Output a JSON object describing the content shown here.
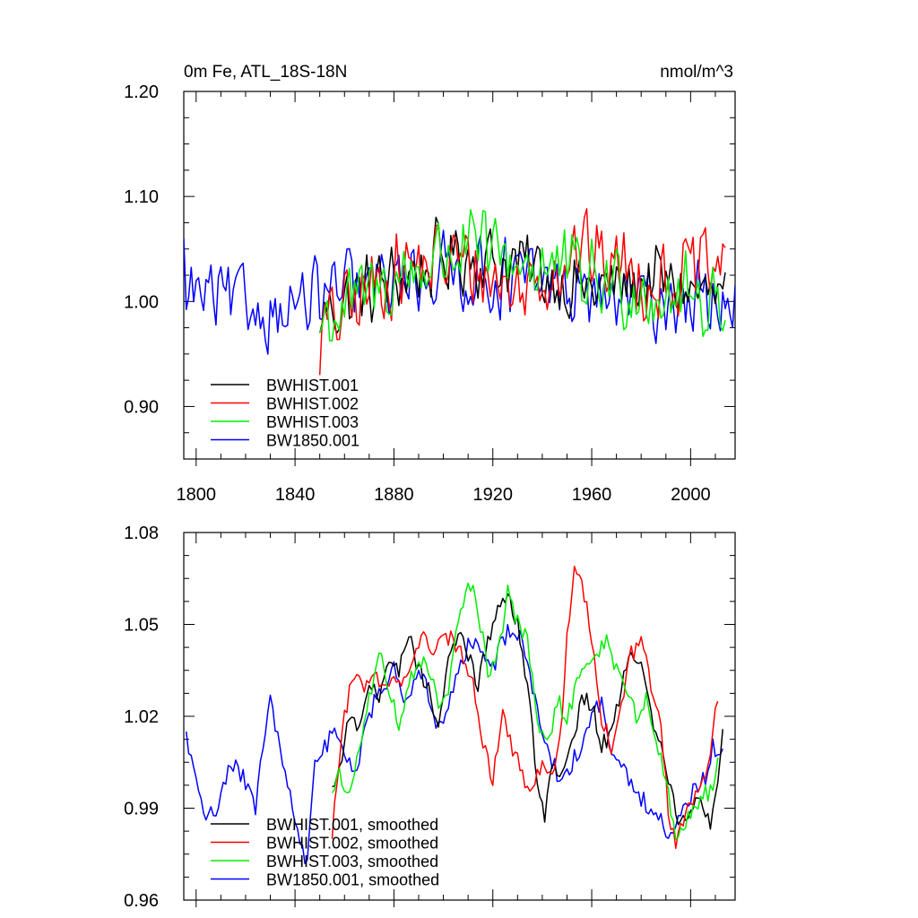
{
  "chart_data": [
    {
      "type": "line",
      "title": "0m Fe, ATL_18S-18N",
      "units": "nmol/m^3",
      "xlabel": "",
      "ylabel": "",
      "xlim": [
        1795,
        2018
      ],
      "ylim": [
        0.85,
        1.2
      ],
      "yticks": [
        0.9,
        1.0,
        1.1,
        1.2
      ],
      "yticklabels": [
        "0.90",
        "1.00",
        "1.10",
        "1.20"
      ],
      "xticks": [
        1800,
        1840,
        1880,
        1920,
        1960,
        2000
      ],
      "xticklabels": [
        "1800",
        "1840",
        "1880",
        "1920",
        "1960",
        "2000"
      ],
      "legend_position": "bottom-left",
      "series": [
        {
          "name": "BWHIST.001",
          "color": "#000000",
          "x_start": 1850,
          "x_end": 2014,
          "start": 0.97,
          "mean": 1.02,
          "amp": 0.055,
          "trend": [
            [
              1850,
              0.99
            ],
            [
              1880,
              1.02
            ],
            [
              1905,
              1.045
            ],
            [
              1930,
              1.035
            ],
            [
              1960,
              1.01
            ],
            [
              1985,
              1.02
            ],
            [
              2014,
              1.0
            ]
          ]
        },
        {
          "name": "BWHIST.002",
          "color": "#ff0000",
          "x_start": 1850,
          "x_end": 2014,
          "start": 0.93,
          "mean": 1.02,
          "amp": 0.06,
          "trend": [
            [
              1850,
              0.97
            ],
            [
              1880,
              1.03
            ],
            [
              1905,
              1.04
            ],
            [
              1930,
              1.01
            ],
            [
              1955,
              1.05
            ],
            [
              1985,
              1.02
            ],
            [
              2014,
              1.03
            ]
          ]
        },
        {
          "name": "BWHIST.003",
          "color": "#00ee00",
          "x_start": 1850,
          "x_end": 2014,
          "start": 0.97,
          "mean": 1.02,
          "amp": 0.06,
          "trend": [
            [
              1850,
              0.98
            ],
            [
              1880,
              1.02
            ],
            [
              1905,
              1.05
            ],
            [
              1930,
              1.04
            ],
            [
              1960,
              1.02
            ],
            [
              1985,
              1.01
            ],
            [
              2014,
              1.0
            ]
          ]
        },
        {
          "name": "BW1850.001",
          "color": "#0000ff",
          "x_start": 1795,
          "x_end": 2018,
          "start": 1.06,
          "mean": 1.0,
          "amp": 0.055,
          "trend": [
            [
              1795,
              1.01
            ],
            [
              1830,
              0.99
            ],
            [
              1860,
              1.01
            ],
            [
              1900,
              1.03
            ],
            [
              1930,
              1.02
            ],
            [
              1970,
              1.0
            ],
            [
              2018,
              1.0
            ]
          ]
        }
      ]
    },
    {
      "type": "line",
      "title": "",
      "units": "",
      "xlabel": "",
      "ylabel": "",
      "xlim": [
        1795,
        2018
      ],
      "ylim": [
        0.96,
        1.08
      ],
      "yticks": [
        0.96,
        0.99,
        1.02,
        1.05,
        1.08
      ],
      "yticklabels": [
        "0.96",
        "0.99",
        "1.02",
        "1.05",
        "1.08"
      ],
      "xticks": [
        1800,
        1840,
        1880,
        1920,
        1960,
        2000
      ],
      "legend_position": "bottom-left",
      "series": [
        {
          "name": "BWHIST.001, smoothed",
          "color": "#000000",
          "x_start": 1855,
          "x_end": 2013,
          "start": 0.997,
          "points": [
            [
              1855,
              0.997
            ],
            [
              1858,
              1.003
            ],
            [
              1862,
              1.02
            ],
            [
              1866,
              1.015
            ],
            [
              1870,
              1.03
            ],
            [
              1874,
              1.025
            ],
            [
              1878,
              1.04
            ],
            [
              1882,
              1.035
            ],
            [
              1886,
              1.047
            ],
            [
              1890,
              1.035
            ],
            [
              1894,
              1.03
            ],
            [
              1898,
              1.015
            ],
            [
              1902,
              1.04
            ],
            [
              1906,
              1.047
            ],
            [
              1910,
              1.04
            ],
            [
              1914,
              1.03
            ],
            [
              1918,
              1.045
            ],
            [
              1922,
              1.055
            ],
            [
              1926,
              1.06
            ],
            [
              1930,
              1.05
            ],
            [
              1934,
              1.03
            ],
            [
              1938,
              1.0
            ],
            [
              1941,
              0.987
            ],
            [
              1944,
              1.005
            ],
            [
              1948,
              1.0
            ],
            [
              1952,
              1.01
            ],
            [
              1956,
              1.025
            ],
            [
              1960,
              1.025
            ],
            [
              1964,
              1.01
            ],
            [
              1968,
              1.015
            ],
            [
              1972,
              1.03
            ],
            [
              1976,
              1.042
            ],
            [
              1980,
              1.035
            ],
            [
              1984,
              1.02
            ],
            [
              1988,
              1.01
            ],
            [
              1992,
              0.995
            ],
            [
              1996,
              0.985
            ],
            [
              2000,
              0.99
            ],
            [
              2004,
              0.995
            ],
            [
              2008,
              0.985
            ],
            [
              2011,
              1.0
            ],
            [
              2013,
              1.014
            ]
          ]
        },
        {
          "name": "BWHIST.002, smoothed",
          "color": "#ff0000",
          "x_start": 1855,
          "x_end": 2011,
          "start": 0.98,
          "points": [
            [
              1855,
              0.98
            ],
            [
              1857,
              1.0
            ],
            [
              1860,
              1.02
            ],
            [
              1864,
              1.035
            ],
            [
              1868,
              1.03
            ],
            [
              1872,
              1.035
            ],
            [
              1876,
              1.03
            ],
            [
              1880,
              1.035
            ],
            [
              1884,
              1.03
            ],
            [
              1888,
              1.04
            ],
            [
              1892,
              1.045
            ],
            [
              1896,
              1.04
            ],
            [
              1900,
              1.045
            ],
            [
              1904,
              1.045
            ],
            [
              1908,
              1.04
            ],
            [
              1912,
              1.03
            ],
            [
              1916,
              1.01
            ],
            [
              1920,
              1.0
            ],
            [
              1924,
              1.02
            ],
            [
              1928,
              1.01
            ],
            [
              1932,
              1.0
            ],
            [
              1936,
              0.998
            ],
            [
              1940,
              1.005
            ],
            [
              1944,
              1.0
            ],
            [
              1948,
              1.02
            ],
            [
              1950,
              1.045
            ],
            [
              1953,
              1.068
            ],
            [
              1957,
              1.06
            ],
            [
              1960,
              1.045
            ],
            [
              1964,
              1.02
            ],
            [
              1968,
              1.01
            ],
            [
              1972,
              1.025
            ],
            [
              1976,
              1.04
            ],
            [
              1980,
              1.045
            ],
            [
              1984,
              1.03
            ],
            [
              1988,
              1.015
            ],
            [
              1991,
              0.99
            ],
            [
              1994,
              0.978
            ],
            [
              1998,
              0.99
            ],
            [
              2002,
              0.995
            ],
            [
              2006,
              1.0
            ],
            [
              2009,
              1.015
            ],
            [
              2011,
              1.025
            ]
          ]
        },
        {
          "name": "BWHIST.003, smoothed",
          "color": "#00ee00",
          "x_start": 1855,
          "x_end": 2011,
          "start": 0.995,
          "points": [
            [
              1855,
              0.995
            ],
            [
              1858,
              1.0
            ],
            [
              1862,
              0.995
            ],
            [
              1866,
              1.01
            ],
            [
              1870,
              1.025
            ],
            [
              1874,
              1.04
            ],
            [
              1878,
              1.03
            ],
            [
              1882,
              1.015
            ],
            [
              1886,
              1.03
            ],
            [
              1890,
              1.04
            ],
            [
              1894,
              1.035
            ],
            [
              1898,
              1.025
            ],
            [
              1902,
              1.03
            ],
            [
              1906,
              1.05
            ],
            [
              1910,
              1.065
            ],
            [
              1914,
              1.055
            ],
            [
              1918,
              1.035
            ],
            [
              1922,
              1.04
            ],
            [
              1926,
              1.06
            ],
            [
              1930,
              1.05
            ],
            [
              1934,
              1.045
            ],
            [
              1938,
              1.02
            ],
            [
              1942,
              1.01
            ],
            [
              1946,
              1.025
            ],
            [
              1950,
              1.02
            ],
            [
              1954,
              1.03
            ],
            [
              1958,
              1.035
            ],
            [
              1962,
              1.04
            ],
            [
              1966,
              1.045
            ],
            [
              1970,
              1.035
            ],
            [
              1974,
              1.03
            ],
            [
              1978,
              1.02
            ],
            [
              1982,
              1.025
            ],
            [
              1986,
              1.01
            ],
            [
              1990,
              1.0
            ],
            [
              1994,
              0.98
            ],
            [
              1998,
              0.985
            ],
            [
              2002,
              0.99
            ],
            [
              2006,
              0.995
            ],
            [
              2009,
              0.995
            ],
            [
              2011,
              1.005
            ]
          ]
        },
        {
          "name": "BW1850.001, smoothed",
          "color": "#0000ff",
          "x_start": 1796,
          "x_end": 2013,
          "start": 1.015,
          "points": [
            [
              1796,
              1.015
            ],
            [
              1800,
              0.998
            ],
            [
              1804,
              0.988
            ],
            [
              1808,
              0.99
            ],
            [
              1812,
              1.0
            ],
            [
              1816,
              1.005
            ],
            [
              1820,
              0.998
            ],
            [
              1824,
              0.99
            ],
            [
              1828,
              1.015
            ],
            [
              1830,
              1.025
            ],
            [
              1834,
              1.01
            ],
            [
              1838,
              0.995
            ],
            [
              1842,
              0.978
            ],
            [
              1845,
              0.972
            ],
            [
              1848,
              1.005
            ],
            [
              1852,
              1.01
            ],
            [
              1856,
              1.015
            ],
            [
              1860,
              1.01
            ],
            [
              1864,
              1.0
            ],
            [
              1868,
              1.015
            ],
            [
              1872,
              1.025
            ],
            [
              1876,
              1.03
            ],
            [
              1880,
              1.035
            ],
            [
              1884,
              1.025
            ],
            [
              1888,
              1.03
            ],
            [
              1892,
              1.035
            ],
            [
              1896,
              1.02
            ],
            [
              1900,
              1.015
            ],
            [
              1904,
              1.03
            ],
            [
              1908,
              1.04
            ],
            [
              1912,
              1.045
            ],
            [
              1916,
              1.04
            ],
            [
              1920,
              1.035
            ],
            [
              1924,
              1.045
            ],
            [
              1928,
              1.05
            ],
            [
              1932,
              1.045
            ],
            [
              1936,
              1.03
            ],
            [
              1940,
              1.015
            ],
            [
              1944,
              1.005
            ],
            [
              1948,
              0.998
            ],
            [
              1952,
              1.005
            ],
            [
              1956,
              1.01
            ],
            [
              1960,
              1.02
            ],
            [
              1964,
              1.025
            ],
            [
              1968,
              1.01
            ],
            [
              1972,
              1.005
            ],
            [
              1976,
              0.998
            ],
            [
              1980,
              0.993
            ],
            [
              1984,
              0.99
            ],
            [
              1988,
              0.988
            ],
            [
              1990,
              0.982
            ],
            [
              1994,
              0.985
            ],
            [
              1998,
              0.99
            ],
            [
              2002,
              0.997
            ],
            [
              2006,
              1.0
            ],
            [
              2009,
              1.01
            ],
            [
              2013,
              1.008
            ]
          ]
        }
      ]
    }
  ]
}
